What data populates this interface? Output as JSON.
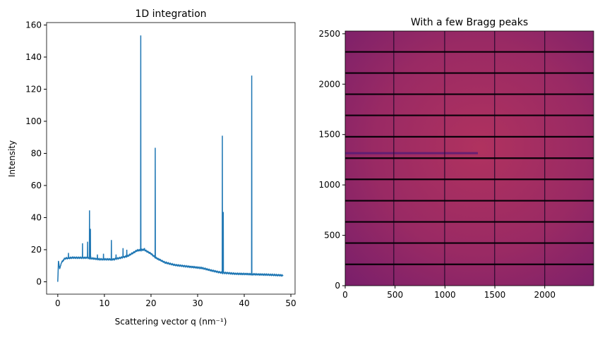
{
  "chart_data": [
    {
      "type": "line",
      "title": "1D integration",
      "xlabel": "Scattering vector q (nm⁻¹)",
      "ylabel": "Intensity",
      "xlim": [
        -2.4,
        50.9
      ],
      "ylim": [
        -7.7,
        161.5
      ],
      "xticks": [
        0,
        10,
        20,
        30,
        40,
        50
      ],
      "yticks": [
        0,
        20,
        40,
        60,
        80,
        100,
        120,
        140,
        160
      ],
      "color": "#1f77b4",
      "baseline": [
        [
          0,
          0
        ],
        [
          0.15,
          13
        ],
        [
          0.4,
          8
        ],
        [
          0.8,
          12
        ],
        [
          1.5,
          14.5
        ],
        [
          3,
          15
        ],
        [
          6,
          15
        ],
        [
          9,
          14
        ],
        [
          12,
          14
        ],
        [
          15,
          16
        ],
        [
          17,
          19.5
        ],
        [
          18.5,
          20
        ],
        [
          20,
          17.5
        ],
        [
          21,
          15
        ],
        [
          23,
          12
        ],
        [
          25,
          10.5
        ],
        [
          28,
          9.5
        ],
        [
          31,
          8.5
        ],
        [
          33,
          7
        ],
        [
          35,
          5.8
        ],
        [
          38,
          5
        ],
        [
          41,
          4.8
        ],
        [
          45,
          4.4
        ],
        [
          48.3,
          4
        ]
      ],
      "peaks": [
        [
          2.3,
          18
        ],
        [
          5.3,
          24
        ],
        [
          6.4,
          25
        ],
        [
          6.8,
          44.5
        ],
        [
          7.0,
          33
        ],
        [
          8.5,
          17
        ],
        [
          9.8,
          17.5
        ],
        [
          11.5,
          26
        ],
        [
          12.5,
          17
        ],
        [
          14,
          21
        ],
        [
          14.8,
          20
        ],
        [
          17.8,
          153.5
        ],
        [
          18.6,
          21
        ],
        [
          20.9,
          83.5
        ],
        [
          35.3,
          91
        ],
        [
          35.5,
          43.5
        ],
        [
          41.6,
          128.5
        ]
      ]
    },
    {
      "type": "heatmap",
      "title": "With a few Bragg peaks",
      "xlim": [
        0,
        2490
      ],
      "ylim": [
        0,
        2527
      ],
      "xticks": [
        0,
        500,
        1000,
        1500,
        2000
      ],
      "yticks": [
        0,
        500,
        1000,
        1500,
        2000,
        2500
      ],
      "colormap": "magma",
      "module_gaps_x": [
        487,
        997,
        1498,
        2000
      ],
      "module_gaps_y": [
        212,
        423,
        633,
        843,
        1055,
        1265,
        1478,
        1690,
        1900,
        2110,
        2320
      ],
      "center": [
        1400,
        1350
      ]
    }
  ]
}
